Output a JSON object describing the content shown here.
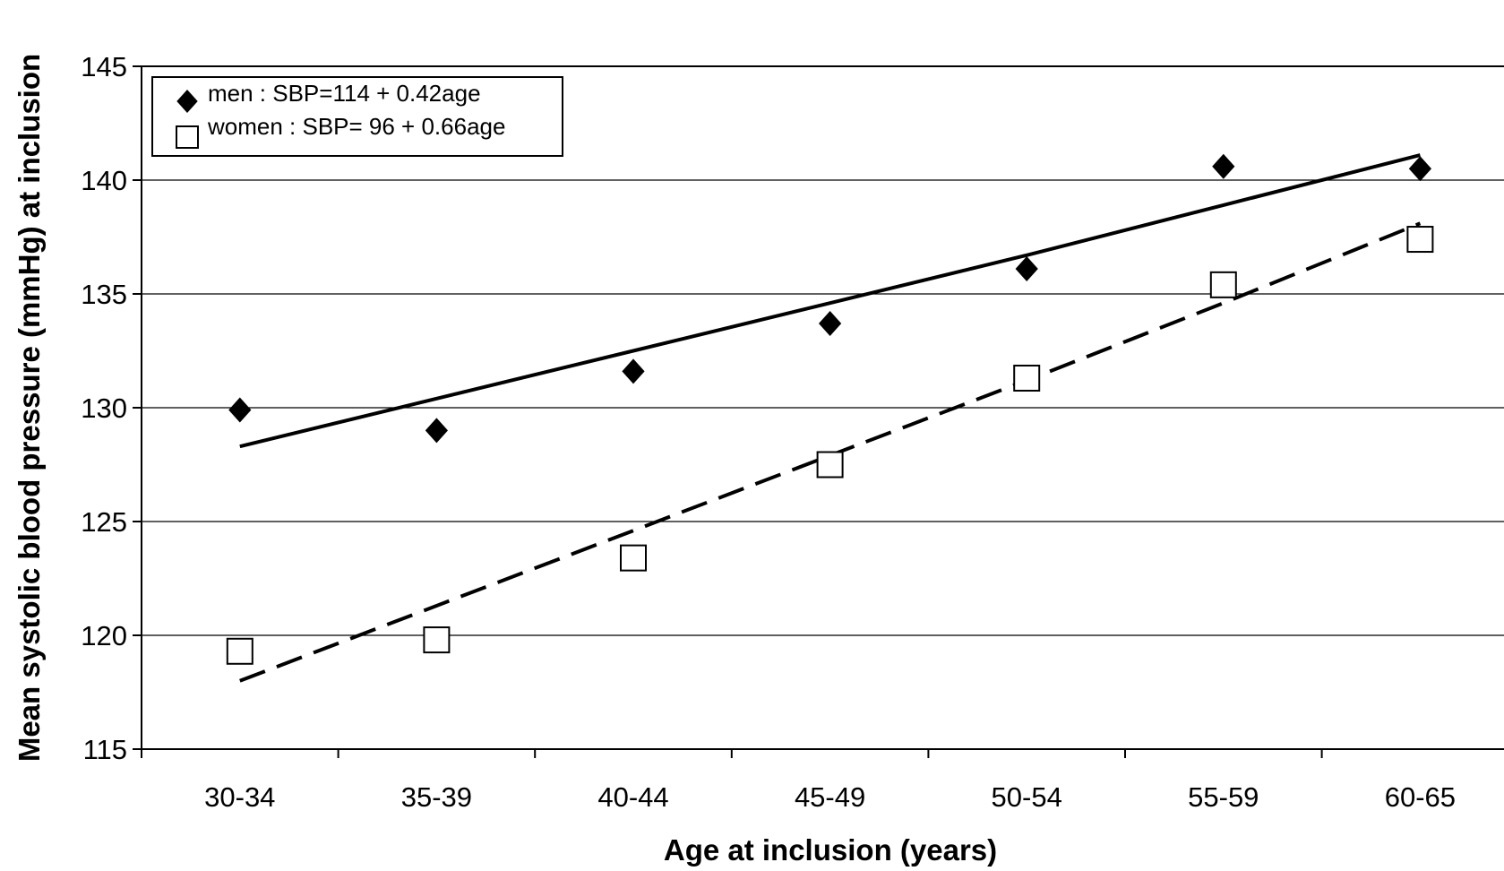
{
  "chart_data": {
    "type": "scatter",
    "title": "",
    "xlabel": "Age at inclusion (years)",
    "ylabel": "Mean systolic blood pressure (mmHg) at inclusion",
    "categories": [
      "30-34",
      "35-39",
      "40-44",
      "45-49",
      "50-54",
      "55-59",
      "60-65"
    ],
    "ylim": [
      115,
      145
    ],
    "yticks": [
      "115",
      "120",
      "125",
      "130",
      "135",
      "140",
      "145"
    ],
    "grid": true,
    "legend_position": "top-left",
    "series": [
      {
        "name": "men : SBP=114 + 0.42age",
        "marker": "filled-diamond",
        "color": "#000000",
        "values": [
          129.9,
          129.0,
          131.6,
          133.7,
          136.1,
          140.6,
          140.5
        ],
        "trend": {
          "type": "solid",
          "values": [
            128.3,
            130.4,
            132.5,
            134.6,
            136.7,
            138.9,
            141.1
          ]
        }
      },
      {
        "name": "women : SBP= 96 + 0.66age",
        "marker": "open-square",
        "color": "#000000",
        "values": [
          119.3,
          119.8,
          123.4,
          127.5,
          131.3,
          135.4,
          137.4
        ],
        "trend": {
          "type": "dashed",
          "values": [
            118.0,
            121.3,
            124.6,
            127.9,
            131.2,
            134.6,
            138.1
          ]
        }
      }
    ]
  }
}
